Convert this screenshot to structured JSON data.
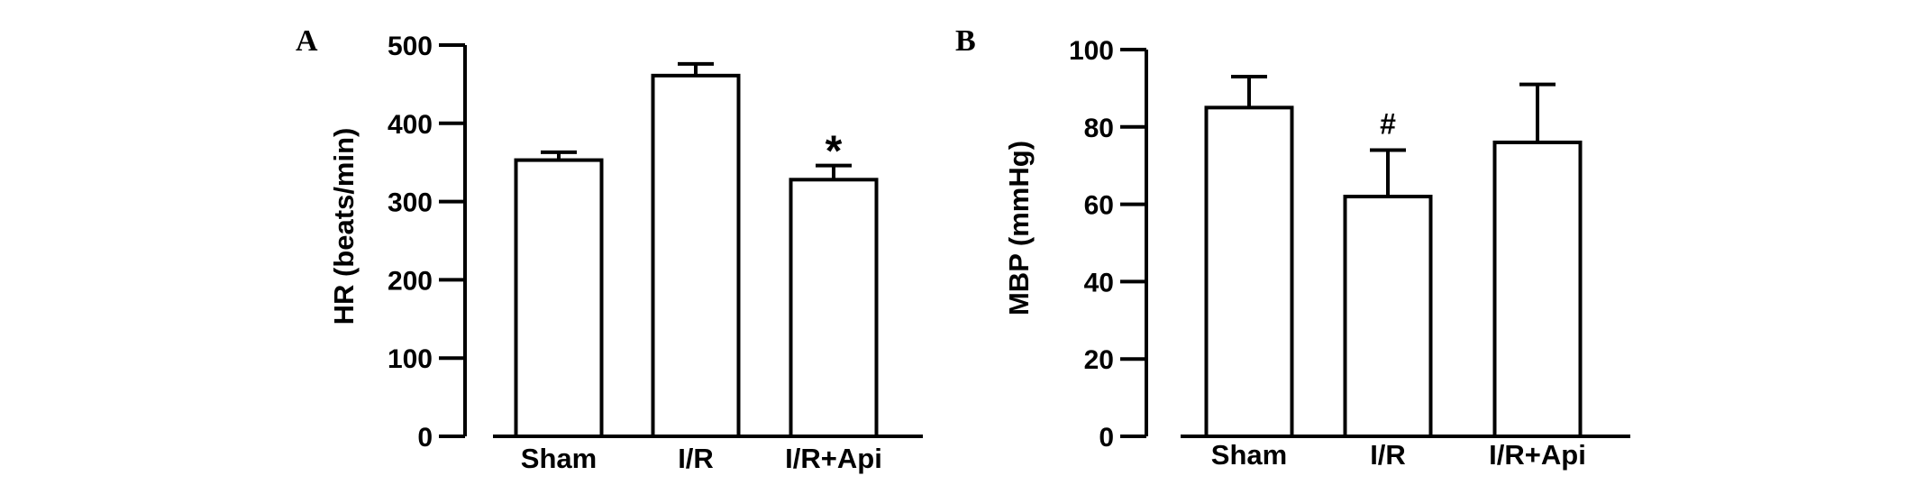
{
  "chart_data": [
    {
      "type": "bar",
      "panel_label": "A",
      "categories": [
        "Sham",
        "I/R",
        "I/R+Api"
      ],
      "values": [
        353,
        461,
        328
      ],
      "errors": [
        10,
        15,
        18
      ],
      "annotations": [
        "",
        "",
        "*"
      ],
      "xlabel": "",
      "ylabel": "HR (beats/min)",
      "ylim": [
        0,
        500
      ],
      "yticks": [
        0,
        100,
        200,
        300,
        400,
        500
      ],
      "grid": false,
      "legend": "none",
      "bar_color": "#ffffff",
      "edge_color": "#000000"
    },
    {
      "type": "bar",
      "panel_label": "B",
      "categories": [
        "Sham",
        "I/R",
        "I/R+Api"
      ],
      "values": [
        85,
        62,
        76
      ],
      "errors": [
        8,
        12,
        15
      ],
      "annotations": [
        "",
        "#",
        ""
      ],
      "xlabel": "",
      "ylabel": "MBP (mmHg)",
      "ylim": [
        0,
        100
      ],
      "yticks": [
        0,
        20,
        40,
        60,
        80,
        100
      ],
      "grid": false,
      "legend": "none",
      "bar_color": "#ffffff",
      "edge_color": "#000000"
    }
  ]
}
